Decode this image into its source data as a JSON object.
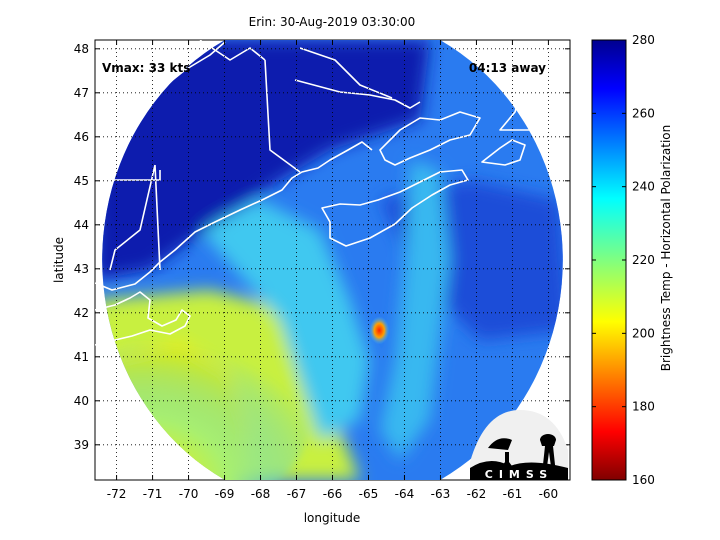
{
  "chart_data": {
    "type": "heatmap",
    "title": "Erin: 30-Aug-2019 03:30:00",
    "xlabel": "longitude",
    "ylabel": "latitude",
    "xlim": [
      -72.6,
      -59.4
    ],
    "ylim": [
      38.2,
      48.2
    ],
    "xticks": [
      -72,
      -71,
      -70,
      -69,
      -68,
      -67,
      -66,
      -65,
      -64,
      -63,
      -62,
      -61,
      -60
    ],
    "yticks": [
      39,
      40,
      41,
      42,
      43,
      44,
      45,
      46,
      47,
      48
    ],
    "grid": true,
    "colorbar": {
      "label": "Brightness Temp - Horizontal Polarization",
      "min": 160,
      "max": 280,
      "ticks": [
        160,
        180,
        200,
        220,
        240,
        260,
        280
      ],
      "colormap": "jet"
    },
    "annotations": {
      "vmax": "Vmax: 33 kts",
      "time_away": "04:13 away"
    },
    "storm_center": {
      "lon": -64.7,
      "lat": 41.6,
      "value": 175
    },
    "swath": {
      "center_lon": -66.0,
      "center_lat": 43.2,
      "radius_deg_lon": 6.4
    },
    "field_regions": [
      {
        "name": "cold-land-maine",
        "value": 272
      },
      {
        "name": "warm-ocean-sw",
        "value": 215
      },
      {
        "name": "ocean-mid",
        "value": 248
      },
      {
        "name": "rainband",
        "value": 235
      }
    ],
    "logo_text": "CIMSS"
  },
  "colors": {
    "background": "#ffffff",
    "coastline": "#ffffff",
    "gridline": "#000000"
  }
}
